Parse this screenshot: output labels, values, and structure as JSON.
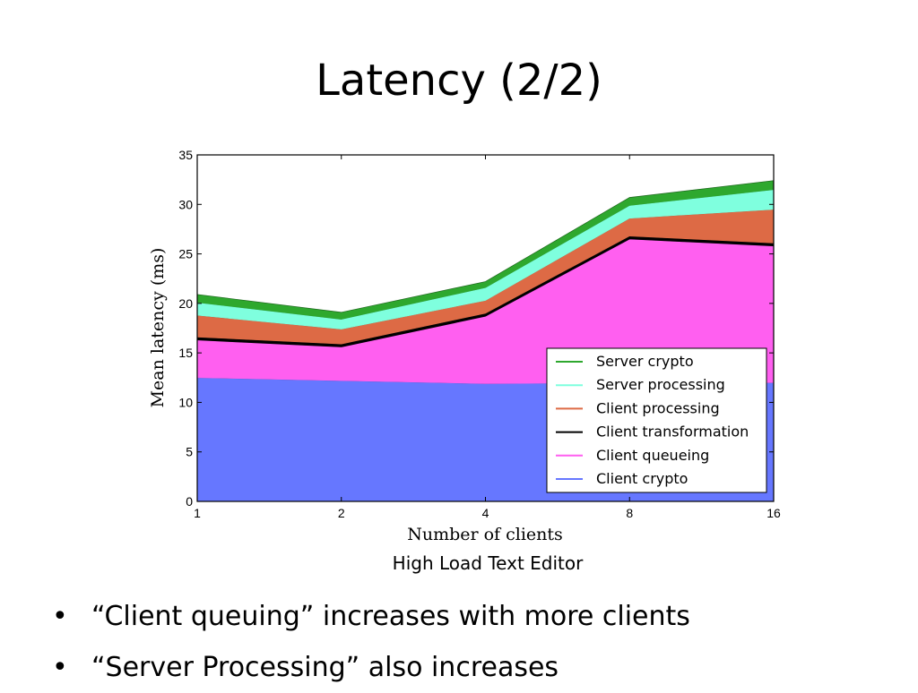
{
  "slide": {
    "title": "Latency (2/2)",
    "caption": "High Load Text Editor",
    "bullets": [
      "“Client queuing” increases with more clients",
      "“Server Processing” also increases"
    ],
    "bullet_glyph": "•"
  },
  "chart_data": {
    "type": "area",
    "stacked": true,
    "xlabel": "Number of clients",
    "ylabel": "Mean latency (ms)",
    "x": [
      1,
      2,
      4,
      8,
      16
    ],
    "x_ticks": [
      "1",
      "2",
      "4",
      "8",
      "16"
    ],
    "x_scale": "log2",
    "ylim": [
      0,
      35
    ],
    "y_ticks": [
      "0",
      "5",
      "10",
      "15",
      "20",
      "25",
      "30",
      "35"
    ],
    "grid": false,
    "legend_position": "lower-right",
    "series": [
      {
        "name": "Client crypto",
        "color": "#6677ff",
        "values": [
          12.5,
          12.2,
          11.9,
          12.0,
          12.0
        ]
      },
      {
        "name": "Client queueing",
        "color": "#ff5ff0",
        "values": [
          3.8,
          3.4,
          6.8,
          14.5,
          13.8
        ]
      },
      {
        "name": "Client transformation",
        "color": "#000000",
        "values": [
          0.3,
          0.3,
          0.3,
          0.3,
          0.3
        ]
      },
      {
        "name": "Client processing",
        "color": "#dd6a45",
        "values": [
          2.2,
          1.5,
          1.3,
          1.8,
          3.4
        ]
      },
      {
        "name": "Server processing",
        "color": "#7fffde",
        "values": [
          1.3,
          1.0,
          1.3,
          1.3,
          2.0
        ]
      },
      {
        "name": "Server crypto",
        "color": "#2ea82e",
        "values": [
          0.8,
          0.7,
          0.6,
          0.8,
          0.9
        ]
      }
    ]
  }
}
